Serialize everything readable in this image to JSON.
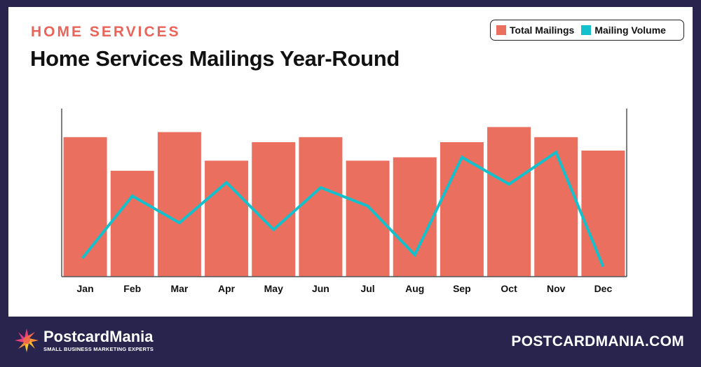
{
  "header": {
    "kicker": "HOME SERVICES",
    "title": "Home Services Mailings Year-Round"
  },
  "footer": {
    "brand": "PostcardMania",
    "tagline": "SMALL BUSINESS MARKETING EXPERTS",
    "website": "POSTCARDMANIA.COM"
  },
  "colors": {
    "bar": "#ea6f5f",
    "line": "#14c0cc",
    "background": "#29244d"
  },
  "chart_data": {
    "type": "bar",
    "title": "Home Services Mailings Year-Round",
    "categories": [
      "Jan",
      "Feb",
      "Mar",
      "Apr",
      "May",
      "Jun",
      "Jul",
      "Aug",
      "Sep",
      "Oct",
      "Nov",
      "Dec"
    ],
    "series": [
      {
        "name": "Total Mailings",
        "type": "bar",
        "values": [
          83,
          63,
          86,
          69,
          80,
          83,
          69,
          71,
          80,
          89,
          83,
          75
        ]
      },
      {
        "name": "Mailing Volume",
        "type": "line",
        "values": [
          11,
          48,
          32,
          56,
          28,
          53,
          42,
          13,
          71,
          55,
          74,
          6
        ]
      }
    ],
    "ylim": [
      0,
      100
    ],
    "y_axis_labels": false,
    "grid": false,
    "legend": "top-right"
  }
}
